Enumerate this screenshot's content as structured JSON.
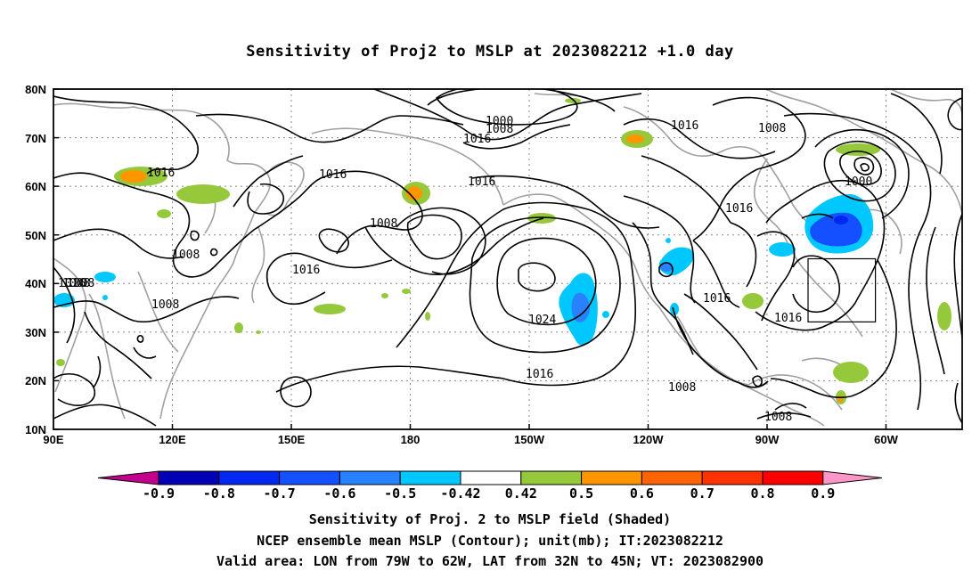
{
  "title": "Sensitivity of Proj2 to MSLP at 2023082212 +1.0 day",
  "map": {
    "lon_ticks": [
      "90E",
      "120E",
      "150E",
      "180",
      "150W",
      "120W",
      "90W",
      "60W"
    ],
    "lat_ticks": [
      "80N",
      "70N",
      "60N",
      "50N",
      "40N",
      "30N",
      "20N",
      "10N"
    ],
    "contour_labels": [
      "1000",
      "1008",
      "1016",
      "1016",
      "1016",
      "1016",
      "1008",
      "1016",
      "1008",
      "1008",
      "1016",
      "1008",
      "1008",
      "1016",
      "1024",
      "1016",
      "1016",
      "1016",
      "1008",
      "1016",
      "1000",
      "1008",
      "1008"
    ],
    "valid_area": {
      "lon_from": "79W",
      "lon_to": "62W",
      "lat_from": "32N",
      "lat_to": "45N"
    }
  },
  "colorbar": {
    "labels": [
      "-0.9",
      "-0.8",
      "-0.7",
      "-0.6",
      "-0.5",
      "-0.42",
      "0.42",
      "0.5",
      "0.6",
      "0.7",
      "0.8",
      "0.9"
    ],
    "colors": [
      "#c3008c",
      "#0000b4",
      "#0028f0",
      "#1450ff",
      "#2882ff",
      "#00c8ff",
      "#ffffff",
      "#96c83c",
      "#ff9600",
      "#ff6400",
      "#ff3200",
      "#ff0000",
      "#ff96c8"
    ]
  },
  "captions": [
    "Sensitivity of Proj. 2 to MSLP field (Shaded)",
    "NCEP ensemble mean MSLP (Contour); unit(mb); IT:2023082212",
    "Valid area: LON from 79W to 62W, LAT from 32N to 45N; VT: 2023082900"
  ]
}
